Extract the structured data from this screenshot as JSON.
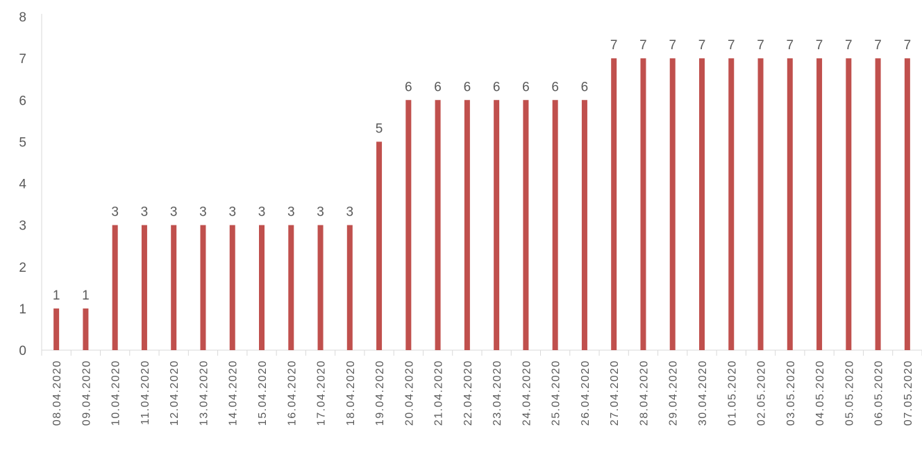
{
  "chart_data": {
    "type": "bar",
    "title": "",
    "xlabel": "",
    "ylabel": "",
    "ylim": [
      0,
      8
    ],
    "yticks": [
      "0",
      "1",
      "2",
      "3",
      "4",
      "5",
      "6",
      "7",
      "8"
    ],
    "grid": false,
    "legend": "none",
    "categories": [
      "08.04.2020",
      "09.04.2020",
      "10.04.2020",
      "11.04.2020",
      "12.04.2020",
      "13.04.2020",
      "14.04.2020",
      "15.04.2020",
      "16.04.2020",
      "17.04.2020",
      "18.04.2020",
      "19.04.2020",
      "20.04.2020",
      "21.04.2020",
      "22.04.2020",
      "23.04.2020",
      "24.04.2020",
      "25.04.2020",
      "26.04.2020",
      "27.04.2020",
      "28.04.2020",
      "29.04.2020",
      "30.04.2020",
      "01.05.2020",
      "02.05.2020",
      "03.05.2020",
      "04.05.2020",
      "05.05.2020",
      "06.05.2020",
      "07.05.2020"
    ],
    "values": [
      1,
      1,
      3,
      3,
      3,
      3,
      3,
      3,
      3,
      3,
      3,
      5,
      6,
      6,
      6,
      6,
      6,
      6,
      6,
      7,
      7,
      7,
      7,
      7,
      7,
      7,
      7,
      7,
      7,
      7
    ],
    "data_labels": true,
    "colors": {
      "bar": "#C0504D",
      "axis": "#D9D9D9",
      "text": "#595959"
    }
  }
}
